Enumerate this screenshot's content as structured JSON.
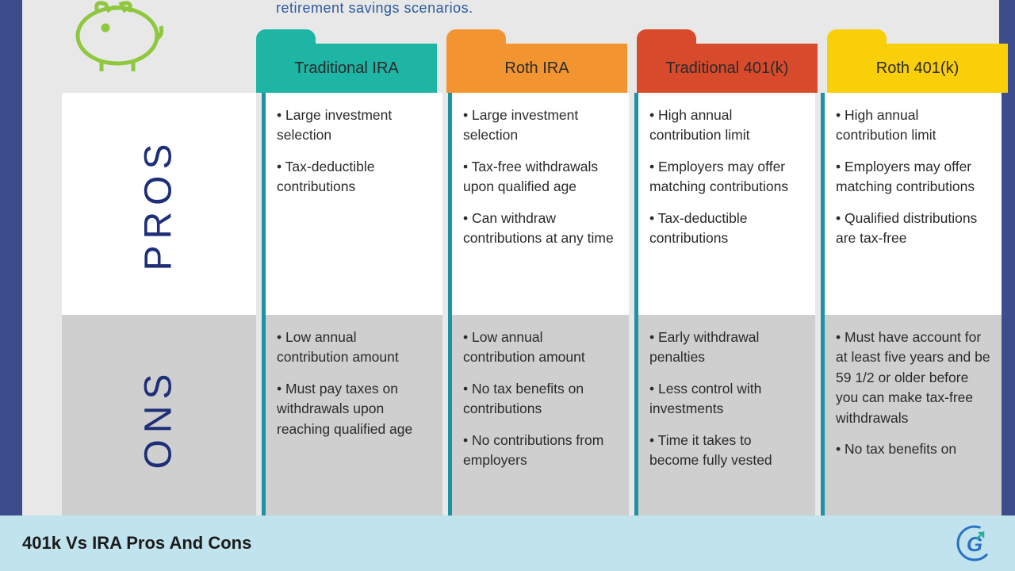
{
  "subtitle": "retirement savings scenarios.",
  "footer_title": "401k Vs IRA Pros And Cons",
  "colors": {
    "page_bg": "#3d4d8c",
    "content_bg": "#e8e8e8",
    "pros_bg": "#ffffff",
    "cons_bg": "#cfcfcf",
    "divider": "#1e91a7",
    "label_text": "#1e2f78",
    "footer_bg": "#c0e3ee",
    "piggy": "#8fc73e",
    "logo_g": "#2b72c4",
    "logo_arrow": "#2aa89a"
  },
  "tabs": [
    {
      "label": "Traditional IRA",
      "color": "#1fb5a5"
    },
    {
      "label": "Roth IRA",
      "color": "#f29530"
    },
    {
      "label": "Traditional 401(k)",
      "color": "#d84a2c"
    },
    {
      "label": "Roth 401(k)",
      "color": "#f9cf0a"
    }
  ],
  "rows": {
    "pros": {
      "label": "PROS",
      "cells": [
        [
          "Large investment selection",
          "Tax-deductible contributions"
        ],
        [
          "Large investment selection",
          "Tax-free withdrawals upon qualified age",
          "Can withdraw contributions at any time"
        ],
        [
          "High annual contribution limit",
          "Employers may offer matching contributions",
          "Tax-deductible contributions"
        ],
        [
          "High annual contribution limit",
          "Employers may offer matching contributions",
          "Qualified distributions are tax-free"
        ]
      ]
    },
    "cons": {
      "label": "ONS",
      "cells": [
        [
          "Low annual contribution amount",
          "Must pay taxes on withdrawals upon reaching qualified age"
        ],
        [
          "Low annual contribution amount",
          "No tax benefits on contributions",
          "No contributions from employers"
        ],
        [
          "Early withdrawal penalties",
          "Less control with investments",
          "Time it takes to become fully vested"
        ],
        [
          "Must have account for at least five years and be 59 1/2 or older before you can make tax-free withdrawals",
          "No tax benefits on"
        ]
      ]
    }
  }
}
